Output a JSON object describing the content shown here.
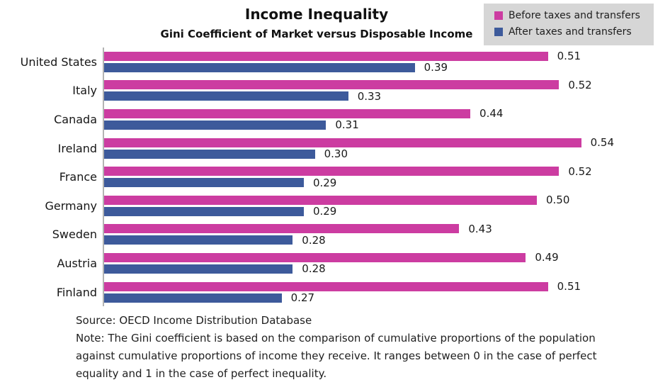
{
  "header": {
    "title": "Income Inequality",
    "subtitle": "Gini Coefficient of Market versus Disposable Income"
  },
  "legend": {
    "items": [
      {
        "label": "Before taxes and transfers",
        "color": "#CC3CA1"
      },
      {
        "label": "After taxes and transfers",
        "color": "#3D5A9B"
      }
    ],
    "background": "#D6D6D6"
  },
  "chart_data": {
    "type": "bar",
    "orientation": "horizontal",
    "title": "Income Inequality",
    "subtitle": "Gini Coefficient of Market versus Disposable Income",
    "categories": [
      "United States",
      "Italy",
      "Canada",
      "Ireland",
      "France",
      "Germany",
      "Sweden",
      "Austria",
      "Finland"
    ],
    "series": [
      {
        "name": "Before taxes and transfers",
        "color": "#CC3CA1",
        "values": [
          0.51,
          0.52,
          0.44,
          0.54,
          0.52,
          0.5,
          0.43,
          0.49,
          0.51
        ]
      },
      {
        "name": "After taxes and transfers",
        "color": "#3D5A9B",
        "values": [
          0.39,
          0.33,
          0.31,
          0.3,
          0.29,
          0.29,
          0.28,
          0.28,
          0.27
        ]
      }
    ],
    "xlabel": "",
    "ylabel": "",
    "grid": false,
    "value_labels_shown": true,
    "value_label_decimals": 2,
    "legend_position": "top-right",
    "render_xlim": [
      0.11,
      0.62
    ]
  },
  "footer": {
    "source": "Source: OECD Income Distribution Database",
    "note_lines": [
      "Note: The Gini coefficient is based on the comparison of cumulative proportions of the population",
      "against cumulative proportions of income they receive. It ranges between 0 in the case of perfect",
      "equality and 1 in the case of perfect inequality."
    ]
  }
}
